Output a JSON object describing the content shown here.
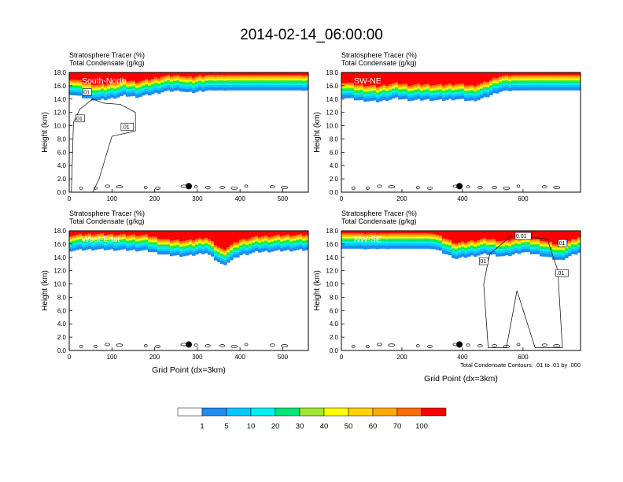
{
  "title": "2014-02-14_06:00:00",
  "legend": {
    "labels": [
      "1",
      "5",
      "10",
      "20",
      "30",
      "40",
      "50",
      "60",
      "70",
      "100"
    ],
    "colors": [
      "#ffffff",
      "#1e8cf0",
      "#00c8ff",
      "#00f0f0",
      "#00e678",
      "#00ff00",
      "#a0e632",
      "#ffff00",
      "#ffd200",
      "#ffaa00",
      "#ff6e00",
      "#ff0000"
    ]
  },
  "chart_data": [
    {
      "type": "heatmap",
      "panel_label": "South-North",
      "subtitle_1": "Stratosphere Tracer   (%)",
      "subtitle_2": "Total Condensate   (g/kg)",
      "ylabel": "Height (km)",
      "xlabel": "",
      "xlim": [
        0,
        560
      ],
      "ylim": [
        0,
        18
      ],
      "xticks": [
        "0",
        "100",
        "200",
        "300",
        "400",
        "500"
      ],
      "xtick_values": [
        0,
        100,
        200,
        300,
        400,
        500
      ],
      "yticks": [
        "0.0",
        "2.0",
        "4.0",
        "6.0",
        "8.0",
        "10.0",
        "12.0",
        "14.0",
        "16.0",
        "18.0"
      ],
      "marker_x": 280,
      "contour_labels": [
        "01",
        "01",
        ".01"
      ],
      "tropopause_x": [
        0,
        40,
        70,
        100,
        130,
        160,
        200,
        220,
        260,
        280,
        320,
        400,
        480,
        560
      ],
      "tropopause_y": [
        14.5,
        13.8,
        13.5,
        13.8,
        14.2,
        14.0,
        14.5,
        14.8,
        15.0,
        14.6,
        15.0,
        15.2,
        15.3,
        15.0
      ]
    },
    {
      "type": "heatmap",
      "panel_label": "SW-NE",
      "subtitle_1": "Stratosphere Tracer   (%)",
      "subtitle_2": "Total Condensate   (g/kg)",
      "ylabel": "Height (km)",
      "xlabel": "",
      "xlim": [
        0,
        790
      ],
      "ylim": [
        0,
        18
      ],
      "xticks": [
        "0",
        "200",
        "400",
        "600"
      ],
      "xtick_values": [
        0,
        200,
        400,
        600
      ],
      "yticks": [
        "0.0",
        "2.0",
        "4.0",
        "6.0",
        "8.0",
        "10.0",
        "12.0",
        "14.0",
        "16.0",
        "18.0"
      ],
      "marker_x": 390,
      "contour_labels": [],
      "tropopause_x": [
        0,
        60,
        120,
        180,
        230,
        280,
        330,
        380,
        430,
        470,
        520,
        600,
        700,
        790
      ],
      "tropopause_y": [
        14.0,
        13.5,
        13.3,
        13.8,
        13.5,
        13.6,
        13.5,
        13.7,
        13.4,
        13.8,
        14.8,
        15.2,
        15.4,
        15.3
      ]
    },
    {
      "type": "heatmap",
      "panel_label": "West-East",
      "subtitle_1": "Stratosphere Tracer   (%)",
      "subtitle_2": "Total Condensate   (g/kg)",
      "ylabel": "Height (km)",
      "xlabel": "Grid Point (dx=3km)",
      "xlim": [
        0,
        560
      ],
      "ylim": [
        0,
        18
      ],
      "xticks": [
        "0",
        "100",
        "200",
        "300",
        "400",
        "500"
      ],
      "xtick_values": [
        0,
        100,
        200,
        300,
        400,
        500
      ],
      "yticks": [
        "0.0",
        "2.0",
        "4.0",
        "6.0",
        "8.0",
        "10.0",
        "12.0",
        "14.0",
        "16.0",
        "18.0"
      ],
      "marker_x": 280,
      "contour_labels": [],
      "tropopause_x": [
        0,
        60,
        120,
        180,
        230,
        280,
        320,
        360,
        400,
        440,
        500,
        560
      ],
      "tropopause_y": [
        14.7,
        14.9,
        14.8,
        14.7,
        14.0,
        13.9,
        14.4,
        12.5,
        14.0,
        14.5,
        14.7,
        14.8
      ]
    },
    {
      "type": "heatmap",
      "panel_label": "NW-SE",
      "subtitle_1": "Stratosphere Tracer   (%)",
      "subtitle_2": "Total Condensate   (g/kg)",
      "ylabel": "Height (km)",
      "xlabel": "Grid Point (dx=3km)",
      "footnote": "Total Condensate Contours: .01 to .01 by .000",
      "xlim": [
        0,
        790
      ],
      "ylim": [
        0,
        18
      ],
      "xticks": [
        "0",
        "200",
        "400",
        "600"
      ],
      "xtick_values": [
        0,
        200,
        400,
        600
      ],
      "yticks": [
        "0.0",
        "2.0",
        "4.0",
        "6.0",
        "8.0",
        "10.0",
        "12.0",
        "14.0",
        "16.0",
        "18.0"
      ],
      "marker_x": 390,
      "contour_labels": [
        "01",
        "0.01",
        "01",
        ".01"
      ],
      "tropopause_x": [
        0,
        100,
        200,
        300,
        380,
        420,
        480,
        540,
        600,
        660,
        720,
        790
      ],
      "tropopause_y": [
        15.2,
        15.0,
        15.2,
        15.1,
        13.5,
        13.8,
        14.2,
        13.8,
        14.5,
        14.0,
        13.2,
        14.5
      ]
    }
  ]
}
